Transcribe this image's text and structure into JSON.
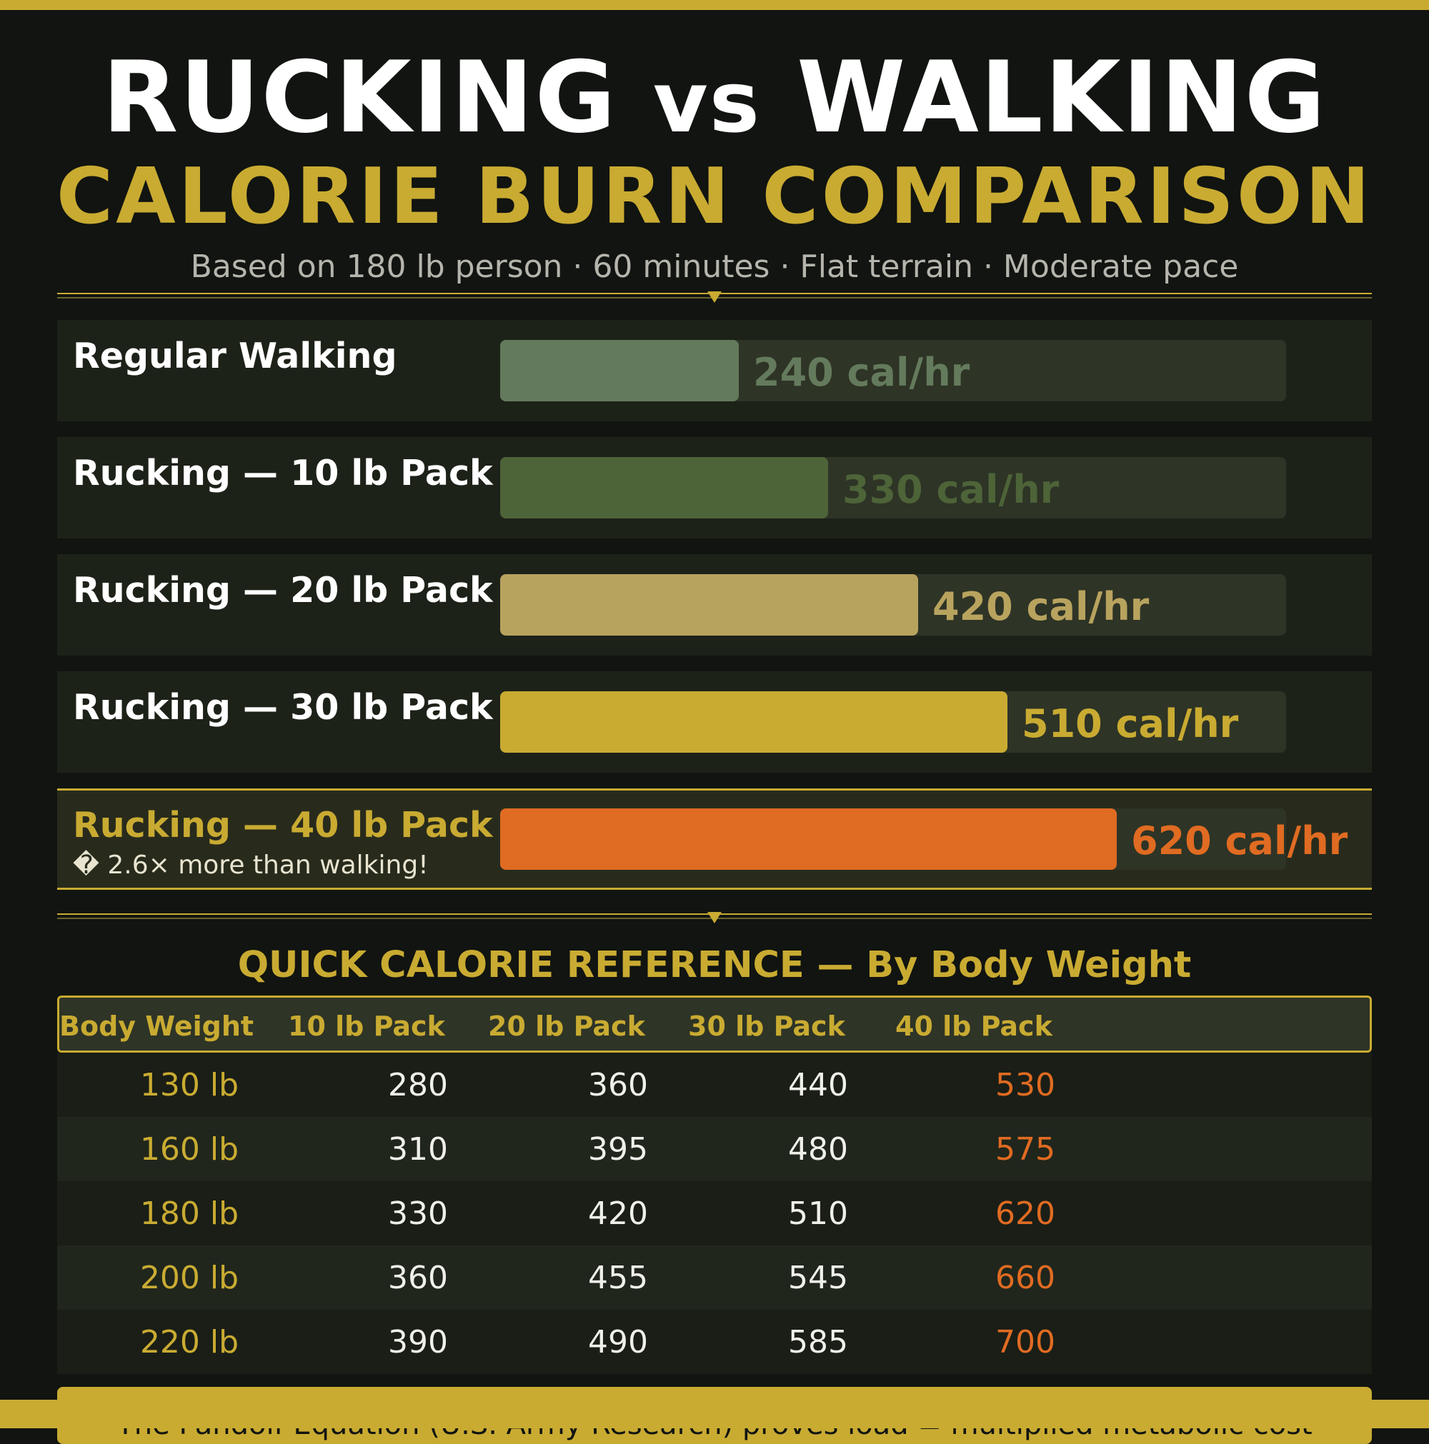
{
  "header": {
    "title_part1": "RUCKING",
    "title_vs": "vs",
    "title_part2": "WALKING",
    "subtitle": "CALORIE BURN COMPARISON",
    "basis": "Based on 180 lb person · 60 minutes · Flat terrain · Moderate pace"
  },
  "chart_data": {
    "type": "bar",
    "orientation": "horizontal",
    "categories": [
      "Regular Walking",
      "Rucking — 10 lb Pack",
      "Rucking — 20 lb Pack",
      "Rucking — 30 lb Pack",
      "Rucking — 40 lb Pack"
    ],
    "values": [
      240,
      330,
      420,
      510,
      620
    ],
    "value_labels": [
      "240 cal/hr",
      "330 cal/hr",
      "420 cal/hr",
      "510 cal/hr",
      "620 cal/hr"
    ],
    "colors": [
      "#647a5c",
      "#4d6338",
      "#b8a35e",
      "#c9ab32",
      "#e06b22"
    ],
    "label_colors": [
      "#647a5c",
      "#4d6338",
      "#b8a35e",
      "#c9ab32",
      "#e06b22"
    ],
    "highlight_index": 4,
    "highlight_note": "� 2.6× more than walking!",
    "xlim": [
      0,
      790
    ],
    "grid": false
  },
  "reference": {
    "title": "QUICK CALORIE REFERENCE  —  By Body Weight",
    "headers": [
      "Body Weight",
      "10 lb Pack",
      "20 lb Pack",
      "30 lb Pack",
      "40 lb Pack"
    ],
    "rows": [
      [
        "130 lb",
        "280",
        "360",
        "440",
        "530"
      ],
      [
        "160 lb",
        "310",
        "395",
        "480",
        "575"
      ],
      [
        "180 lb",
        "330",
        "420",
        "510",
        "620"
      ],
      [
        "200 lb",
        "360",
        "455",
        "545",
        "660"
      ],
      [
        "220 lb",
        "390",
        "490",
        "585",
        "700"
      ]
    ]
  },
  "footer": {
    "text": "The Pandolf Equation (U.S. Army Research) proves load = multiplied metabolic cost"
  },
  "colors": {
    "accent": "#c9ab32",
    "hot": "#e06b22",
    "background": "#111410"
  }
}
